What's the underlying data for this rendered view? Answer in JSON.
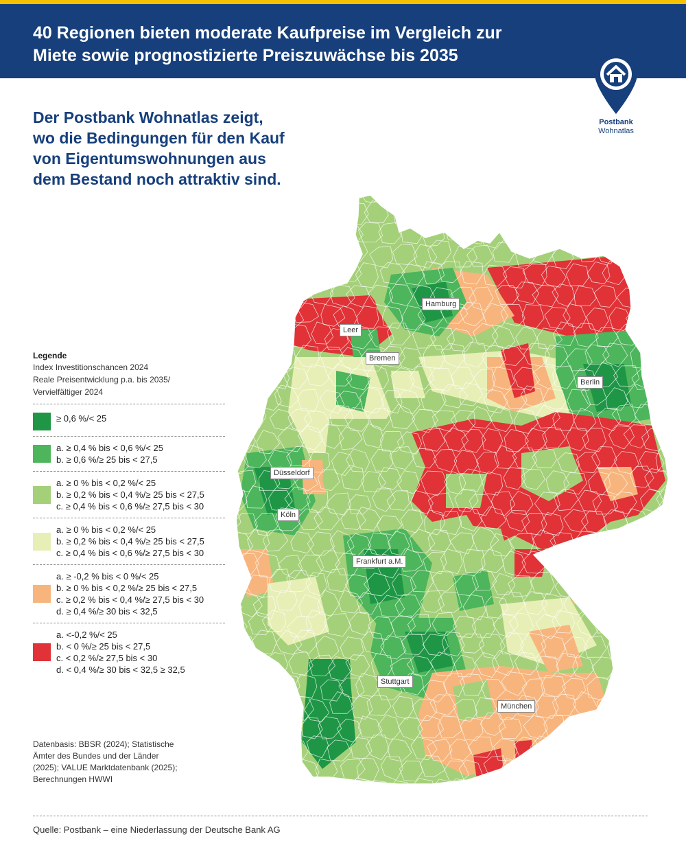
{
  "header": {
    "title_line1": "40 Regionen bieten moderate Kaufpreise im Vergleich zur",
    "title_line2": "Miete sowie prognostizierte Preiszuwächse bis 2035"
  },
  "logo": {
    "name": "Postbank",
    "sub": "Wohnatlas",
    "icon": "house-pin-icon"
  },
  "subtitle": {
    "line1": "Der Postbank Wohnatlas zeigt,",
    "line2": "wo die Bedingungen für den Kauf",
    "line3": "von Eigentumswohnungen aus",
    "line4": "dem Bestand noch attraktiv sind."
  },
  "legend": {
    "title": "Legende",
    "sub1": "Index Investitionschancen 2024",
    "sub2": "Reale Preisentwicklung p.a. bis 2035/",
    "sub3": "Vervielfältiger 2024",
    "classes": [
      {
        "color": "#1e9645",
        "lines": [
          "≥ 0,6 %/< 25"
        ]
      },
      {
        "color": "#4db55b",
        "lines": [
          "a. ≥ 0,4 % bis < 0,6 %/< 25",
          "b. ≥ 0,6 %/≥ 25 bis < 27,5"
        ]
      },
      {
        "color": "#a5d07a",
        "lines": [
          "a. ≥ 0 % bis < 0,2 %/< 25",
          "b. ≥ 0,2 % bis < 0,4 %/≥ 25 bis < 27,5",
          "c. ≥ 0,4 % bis < 0,6 %/≥ 27,5 bis < 30"
        ]
      },
      {
        "color": "#e7efb6",
        "lines": [
          "a. ≥ 0 % bis < 0,2 %/< 25",
          "b. ≥ 0,2 % bis < 0,4 %/≥ 25 bis < 27,5",
          "c. ≥ 0,4 % bis < 0,6 %/≥ 27,5 bis < 30"
        ]
      },
      {
        "color": "#f7b57d",
        "lines": [
          "a. ≥ -0,2 % bis < 0 %/< 25",
          "b. ≥ 0 % bis < 0,2 %/≥ 25 bis < 27,5",
          "c. ≥ 0,2 % bis < 0,4 %/≥ 27,5 bis < 30",
          "d. ≥ 0,4 %/≥ 30 bis < 32,5"
        ]
      },
      {
        "color": "#e03237",
        "lines": [
          "a. <-0,2 %/< 25",
          "b. < 0 %/≥ 25 bis < 27,5",
          "c. < 0,2 %/≥ 27,5 bis < 30",
          "d. < 0,4 %/≥ 30 bis < 32,5 ≥ 32,5"
        ]
      }
    ]
  },
  "cities": {
    "hamburg": "Hamburg",
    "leer": "Leer",
    "bremen": "Bremen",
    "berlin": "Berlin",
    "duesseldorf": "Düsseldorf",
    "koeln": "Köln",
    "frankfurt": "Frankfurt a.M.",
    "stuttgart": "Stuttgart",
    "muenchen": "München"
  },
  "source_note": {
    "line1": "Datenbasis: BBSR (2024); Statistische",
    "line2": "Ämter des Bundes und der Länder",
    "line3": "(2025); VALUE Marktdatenbank (2025);",
    "line4": "Berechnungen HWWI"
  },
  "footer": "Quelle: Postbank – eine Niederlassung der Deutsche Bank AG"
}
